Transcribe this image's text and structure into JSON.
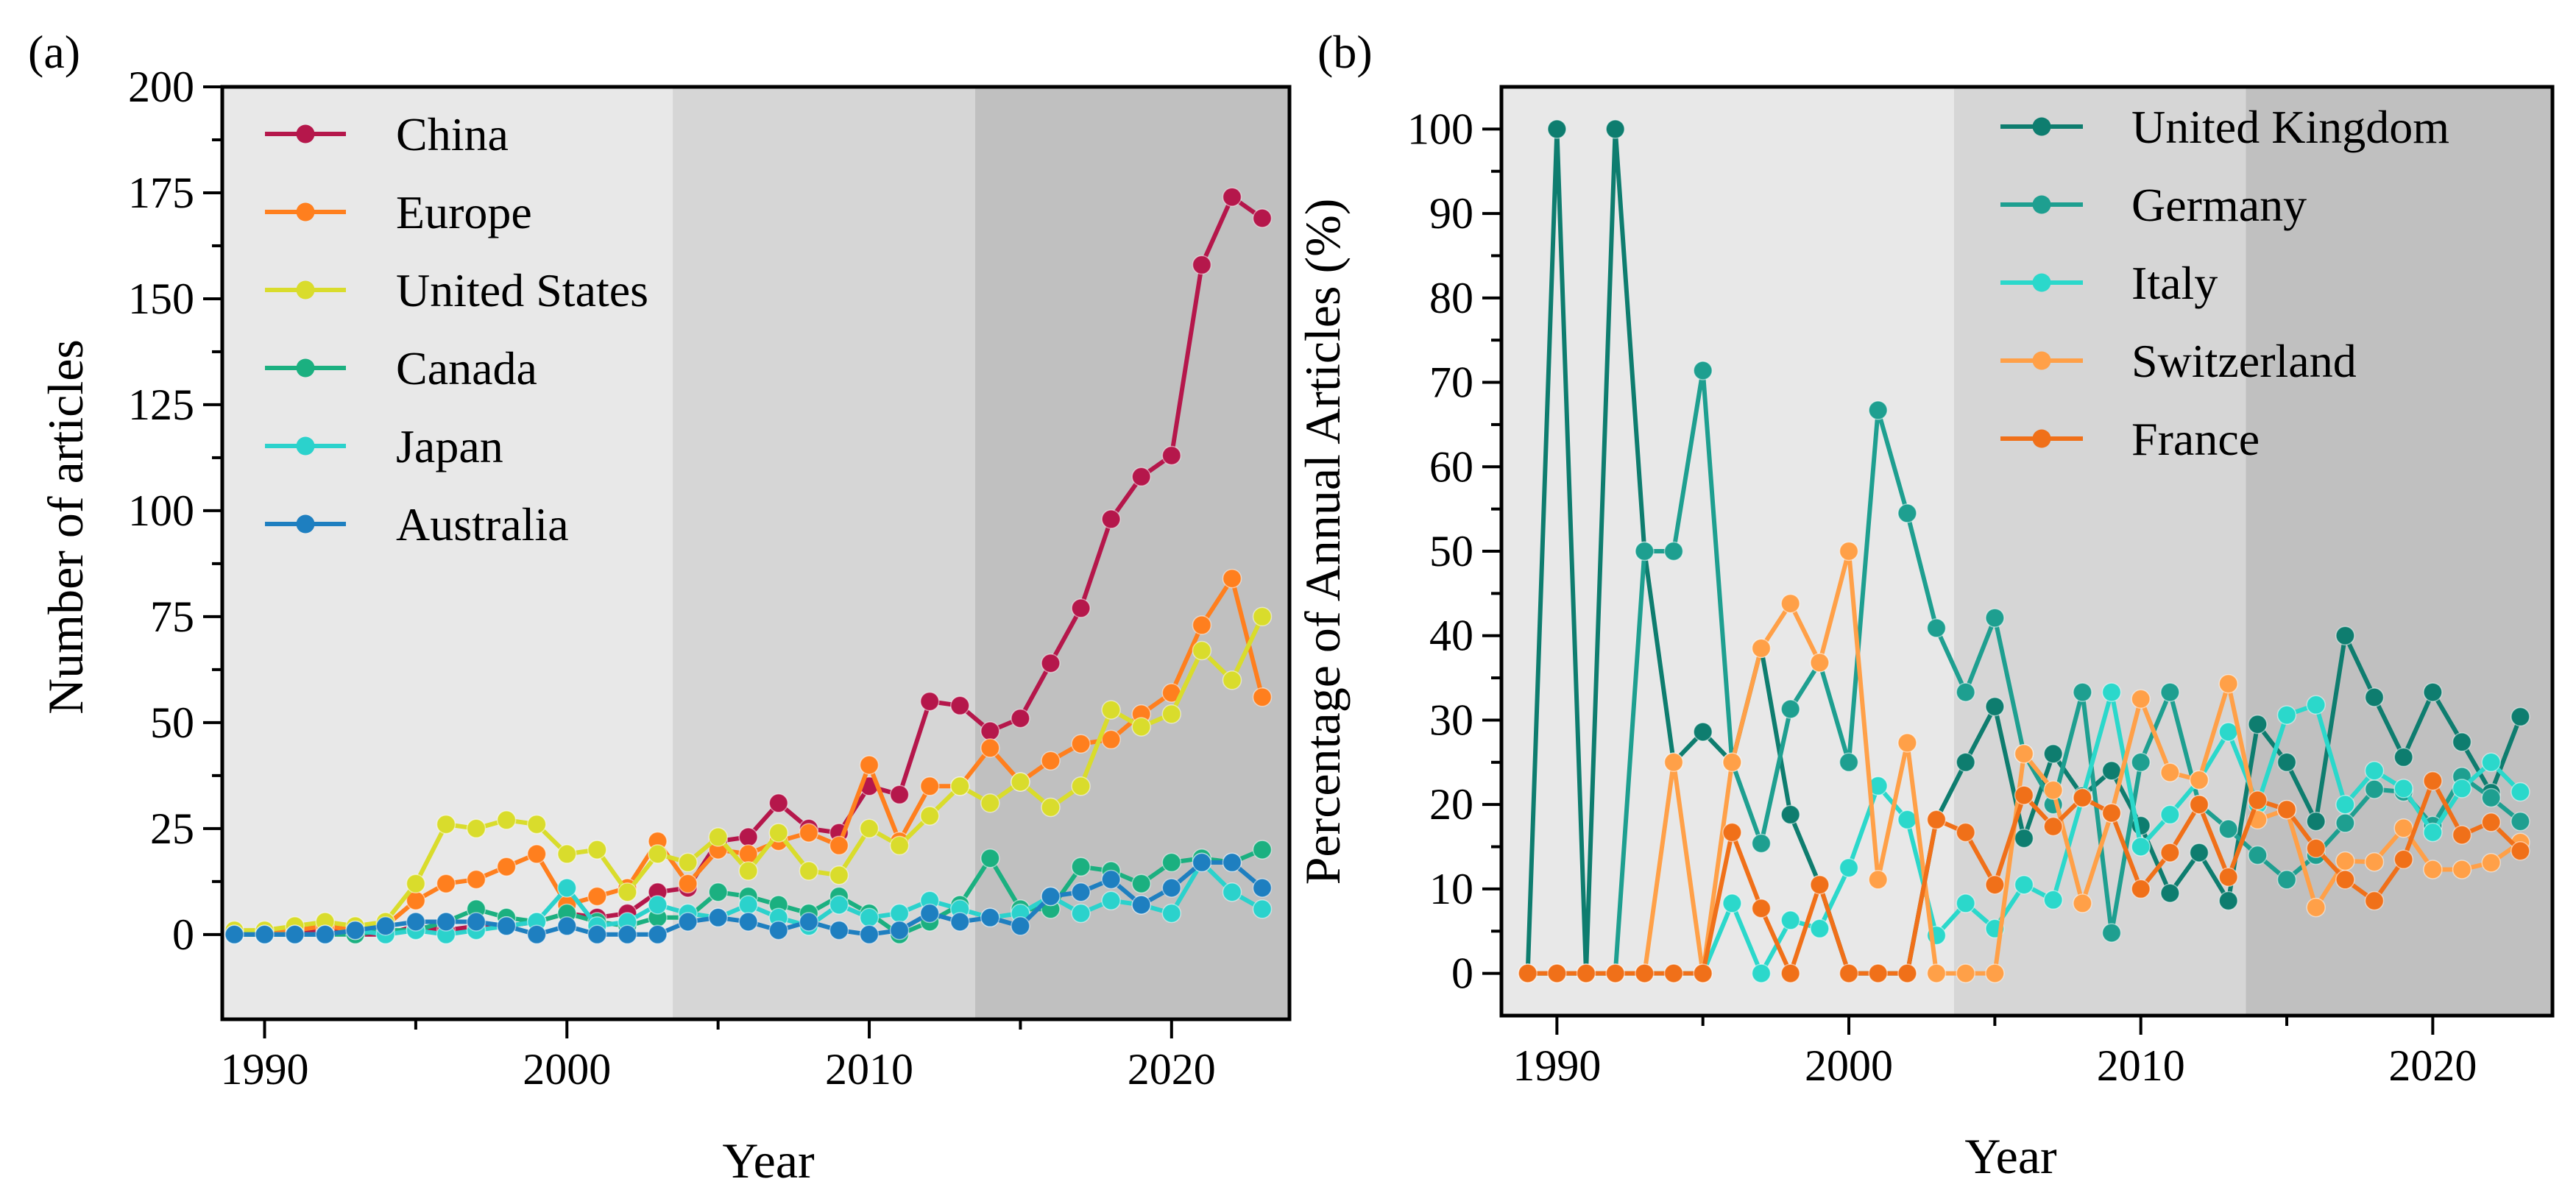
{
  "chart_data": [
    {
      "panel": "(a)",
      "type": "line",
      "xlabel": "Year",
      "ylabel": "Number of articles",
      "xlim": [
        1988.6,
        2023.9
      ],
      "ylim": [
        -20,
        200
      ],
      "xticks": [
        1990,
        2000,
        2010,
        2020
      ],
      "yticks": [
        0,
        25,
        50,
        75,
        100,
        125,
        150,
        175,
        200
      ],
      "legend_position": "top-left",
      "grid": false,
      "bands": [
        {
          "from": 1988.6,
          "to": 2003.5,
          "color": "#e8e8e8"
        },
        {
          "from": 2003.5,
          "to": 2013.5,
          "color": "#d6d6d6"
        },
        {
          "from": 2013.5,
          "to": 2023.9,
          "color": "#c0c0c0"
        }
      ],
      "x": [
        1989,
        1990,
        1991,
        1992,
        1993,
        1994,
        1995,
        1996,
        1997,
        1998,
        1999,
        2000,
        2001,
        2002,
        2003,
        2004,
        2005,
        2006,
        2007,
        2008,
        2009,
        2010,
        2011,
        2012,
        2013,
        2014,
        2015,
        2016,
        2017,
        2018,
        2019,
        2020,
        2021,
        2022,
        2023
      ],
      "series": [
        {
          "name": "China",
          "color": "#b5174b",
          "values": [
            0,
            0,
            0,
            1,
            0,
            0,
            2,
            1,
            2,
            2,
            3,
            5,
            4,
            5,
            10,
            11,
            22,
            23,
            31,
            25,
            24,
            35,
            33,
            55,
            54,
            48,
            51,
            64,
            77,
            98,
            108,
            113,
            158,
            174,
            169
          ]
        },
        {
          "name": "Europe",
          "color": "#ff7f1e",
          "values": [
            0,
            0,
            1,
            2,
            1,
            2,
            8,
            12,
            13,
            16,
            19,
            7,
            9,
            11,
            22,
            12,
            20,
            19,
            22,
            24,
            21,
            40,
            22,
            35,
            35,
            44,
            36,
            41,
            45,
            46,
            52,
            57,
            73,
            84,
            56
          ]
        },
        {
          "name": "United States",
          "color": "#d9dc2c",
          "values": [
            1,
            1,
            2,
            3,
            2,
            3,
            12,
            26,
            25,
            27,
            26,
            19,
            20,
            10,
            19,
            17,
            23,
            15,
            24,
            15,
            14,
            25,
            21,
            28,
            35,
            31,
            36,
            30,
            35,
            53,
            49,
            52,
            67,
            60,
            75
          ]
        },
        {
          "name": "Canada",
          "color": "#1bb080",
          "values": [
            0,
            0,
            0,
            0,
            0,
            1,
            1,
            3,
            6,
            4,
            3,
            5,
            3,
            2,
            4,
            4,
            10,
            9,
            7,
            5,
            9,
            5,
            0,
            3,
            7,
            18,
            6,
            6,
            16,
            15,
            12,
            17,
            18,
            17,
            20
          ]
        },
        {
          "name": "Japan",
          "color": "#2bd2cc",
          "values": [
            0,
            0,
            0,
            0,
            1,
            0,
            1,
            0,
            1,
            2,
            3,
            11,
            2,
            3,
            7,
            5,
            4,
            7,
            4,
            2,
            7,
            4,
            5,
            8,
            6,
            4,
            5,
            9,
            5,
            8,
            7,
            5,
            17,
            10,
            6
          ]
        },
        {
          "name": "Australia",
          "color": "#1e7fc0",
          "values": [
            0,
            0,
            0,
            0,
            1,
            2,
            3,
            3,
            3,
            2,
            0,
            2,
            0,
            0,
            0,
            3,
            4,
            3,
            1,
            3,
            1,
            0,
            1,
            5,
            3,
            4,
            2,
            9,
            10,
            13,
            7,
            11,
            17,
            17,
            11
          ]
        }
      ]
    },
    {
      "panel": "(b)",
      "type": "line",
      "xlabel": "Year",
      "ylabel": "Percentage of Annual Articles (%)",
      "xlim": [
        1988.1,
        2024.1
      ],
      "ylim": [
        -5,
        105
      ],
      "xticks": [
        1990,
        2000,
        2010,
        2020
      ],
      "yticks": [
        0,
        10,
        20,
        30,
        40,
        50,
        60,
        70,
        80,
        90,
        100
      ],
      "legend_position": "top-right",
      "grid": false,
      "bands": [
        {
          "from": 1988.1,
          "to": 2003.6,
          "color": "#e8e8e8"
        },
        {
          "from": 2003.6,
          "to": 2013.6,
          "color": "#d6d6d6"
        },
        {
          "from": 2013.6,
          "to": 2024.1,
          "color": "#c0c0c0"
        }
      ],
      "x": [
        1989,
        1990,
        1991,
        1992,
        1993,
        1994,
        1995,
        1996,
        1997,
        1998,
        1999,
        2000,
        2001,
        2002,
        2003,
        2004,
        2005,
        2006,
        2007,
        2008,
        2009,
        2010,
        2011,
        2012,
        2013,
        2014,
        2015,
        2016,
        2017,
        2018,
        2019,
        2020,
        2021,
        2022,
        2023
      ],
      "series": [
        {
          "name": "United Kingdom",
          "color": "#0e7d6f",
          "values": [
            0,
            100,
            0,
            100,
            50,
            25,
            28.6,
            25,
            38.5,
            18.8,
            10.5,
            0,
            0,
            0,
            18.2,
            25,
            31.6,
            16,
            26,
            21,
            24,
            17.5,
            9.5,
            14.3,
            8.6,
            29.5,
            25,
            18,
            40,
            32.7,
            25.6,
            33.3,
            27.4,
            21.4,
            30.4
          ]
        },
        {
          "name": "Germany",
          "color": "#1e9f90",
          "values": [
            0,
            0,
            0,
            0,
            50,
            50,
            71.4,
            25,
            15.4,
            31.3,
            36.8,
            25,
            66.7,
            54.5,
            40.9,
            33.3,
            42.1,
            26,
            20,
            33.3,
            4.8,
            25,
            33.3,
            20,
            17.1,
            14,
            11.1,
            14,
            17.8,
            21.8,
            21.5,
            17.5,
            23.3,
            20.8,
            18
          ]
        },
        {
          "name": "Italy",
          "color": "#2bd8cb",
          "values": [
            0,
            0,
            0,
            0,
            0,
            0,
            0,
            8.3,
            0,
            6.3,
            5.3,
            12.5,
            22.2,
            18.2,
            4.5,
            8.3,
            5.3,
            10.5,
            8.7,
            20.8,
            33.3,
            15,
            18.8,
            22.9,
            28.6,
            20,
            30.6,
            31.8,
            20,
            24,
            21.9,
            16.7,
            21.9,
            25,
            21.5
          ]
        },
        {
          "name": "Switzerland",
          "color": "#ffa048",
          "values": [
            0,
            0,
            0,
            0,
            0,
            25,
            0,
            25,
            38.5,
            43.8,
            36.8,
            50,
            11.1,
            27.3,
            0,
            0,
            0,
            26,
            21.7,
            8.3,
            19,
            32.5,
            23.8,
            22.9,
            34.3,
            18.2,
            19.4,
            7.8,
            13.3,
            13.2,
            17.2,
            12.3,
            12.3,
            13.1,
            15.5
          ]
        },
        {
          "name": "France",
          "color": "#f07019",
          "values": [
            0,
            0,
            0,
            0,
            0,
            0,
            0,
            16.7,
            7.7,
            0,
            10.5,
            0,
            0,
            0,
            18.2,
            16.7,
            10.5,
            21.1,
            17.4,
            20.8,
            19,
            10,
            14.3,
            20,
            11.4,
            20.5,
            19.4,
            14.8,
            11.1,
            8.6,
            13.5,
            22.8,
            16.4,
            17.9,
            14.5
          ]
        }
      ]
    }
  ]
}
